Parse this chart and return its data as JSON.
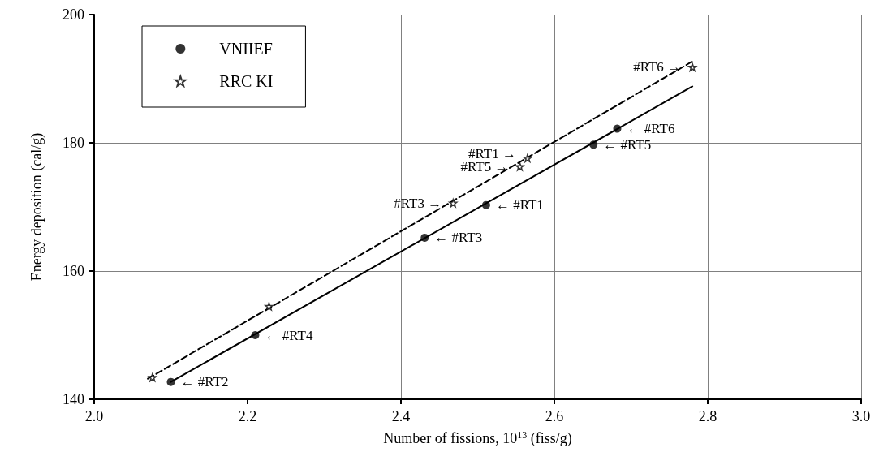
{
  "chart_data": {
    "type": "scatter",
    "xlabel": "Number of fissions, 10$^{13}$ (fiss/g)",
    "ylabel": "Energy deposition (cal/g)",
    "xlim": [
      2.0,
      3.0
    ],
    "xticks": [
      {
        "value": 2.0,
        "label": "2.0"
      },
      {
        "value": 2.2,
        "label": "2.2"
      },
      {
        "value": 2.4,
        "label": "2.4"
      },
      {
        "value": 2.6,
        "label": "2.6"
      },
      {
        "value": 2.8,
        "label": "2.8"
      },
      {
        "value": 3.0,
        "label": "3.0"
      }
    ],
    "ylim": [
      140,
      200
    ],
    "yticks": [
      140,
      160,
      180,
      200
    ],
    "grid": true,
    "legend": "top left",
    "series": [
      {
        "name": "VNIIEF",
        "marker": "circle",
        "color": "#000000",
        "x": [
          2.1,
          2.21,
          2.431,
          2.511,
          2.651,
          2.682
        ],
        "values": [
          142.7,
          150.0,
          165.2,
          170.3,
          179.7,
          182.2
        ]
      },
      {
        "name": "RRC KI",
        "marker": "star",
        "color": "#000000",
        "x": [
          2.076,
          2.228,
          2.468,
          2.555,
          2.565,
          2.78
        ],
        "values": [
          143.4,
          154.5,
          170.6,
          176.3,
          177.6,
          191.8
        ]
      },
      {
        "type": "line",
        "marker": "none",
        "line_style": "solid",
        "color": "#000000",
        "x": [
          2.1,
          2.78
        ],
        "values": [
          142.7,
          188.8
        ]
      },
      {
        "type": "line",
        "marker": "none",
        "line_style": "dashed",
        "color": "#000000",
        "x": [
          2.07,
          2.78
        ],
        "values": [
          143.2,
          192.7
        ]
      }
    ],
    "annotations": [
      {
        "text": "← #RT2",
        "x": 2.1,
        "y": 142.7
      },
      {
        "text": "← #RT4",
        "x": 2.21,
        "y": 150.0
      },
      {
        "text": "← #RT3",
        "x": 2.431,
        "y": 165.2
      },
      {
        "text": "← #RT1",
        "x": 2.511,
        "y": 170.3
      },
      {
        "text": "← #RT5",
        "x": 2.651,
        "y": 179.7
      },
      {
        "text": "← #RT6",
        "x": 2.682,
        "y": 182.2
      },
      {
        "text": "#RT3 →",
        "x": 2.468,
        "y": 170.6
      },
      {
        "text": "#RT5 →",
        "x": 2.555,
        "y": 176.3
      },
      {
        "text": "#RT1 →",
        "x": 2.565,
        "y": 177.6
      },
      {
        "text": "#RT6 →",
        "x": 2.78,
        "y": 191.8
      }
    ]
  }
}
